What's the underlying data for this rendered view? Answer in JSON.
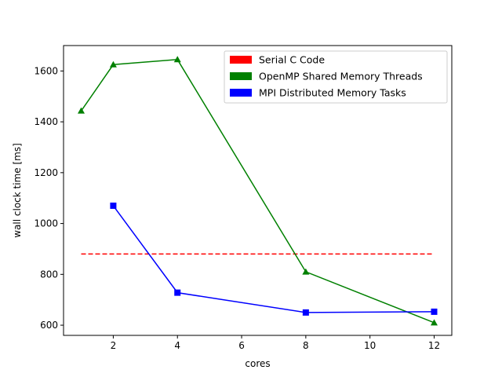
{
  "chart_data": {
    "type": "line",
    "title": "",
    "xlabel": "cores",
    "ylabel": "wall clock time [ms]",
    "xlim": [
      0.45,
      12.55
    ],
    "ylim": [
      560,
      1700
    ],
    "xticks": [
      2,
      4,
      6,
      8,
      10,
      12
    ],
    "yticks": [
      600,
      800,
      1000,
      1200,
      1400,
      1600
    ],
    "grid": false,
    "legend_position": "top-right",
    "series": [
      {
        "name": "Serial C Code",
        "color": "#ff0000",
        "line_style": "dashed",
        "marker": "none",
        "x": [
          1,
          12
        ],
        "y": [
          880,
          880
        ]
      },
      {
        "name": "OpenMP Shared Memory Threads",
        "color": "#008000",
        "line_style": "solid",
        "marker": "triangle",
        "x": [
          1,
          2,
          4,
          8,
          12
        ],
        "y": [
          1443,
          1625,
          1645,
          810,
          610
        ]
      },
      {
        "name": "MPI Distributed Memory Tasks",
        "color": "#0000ff",
        "line_style": "solid",
        "marker": "square",
        "x": [
          2,
          4,
          8,
          12
        ],
        "y": [
          1070,
          728,
          650,
          653
        ]
      }
    ]
  }
}
